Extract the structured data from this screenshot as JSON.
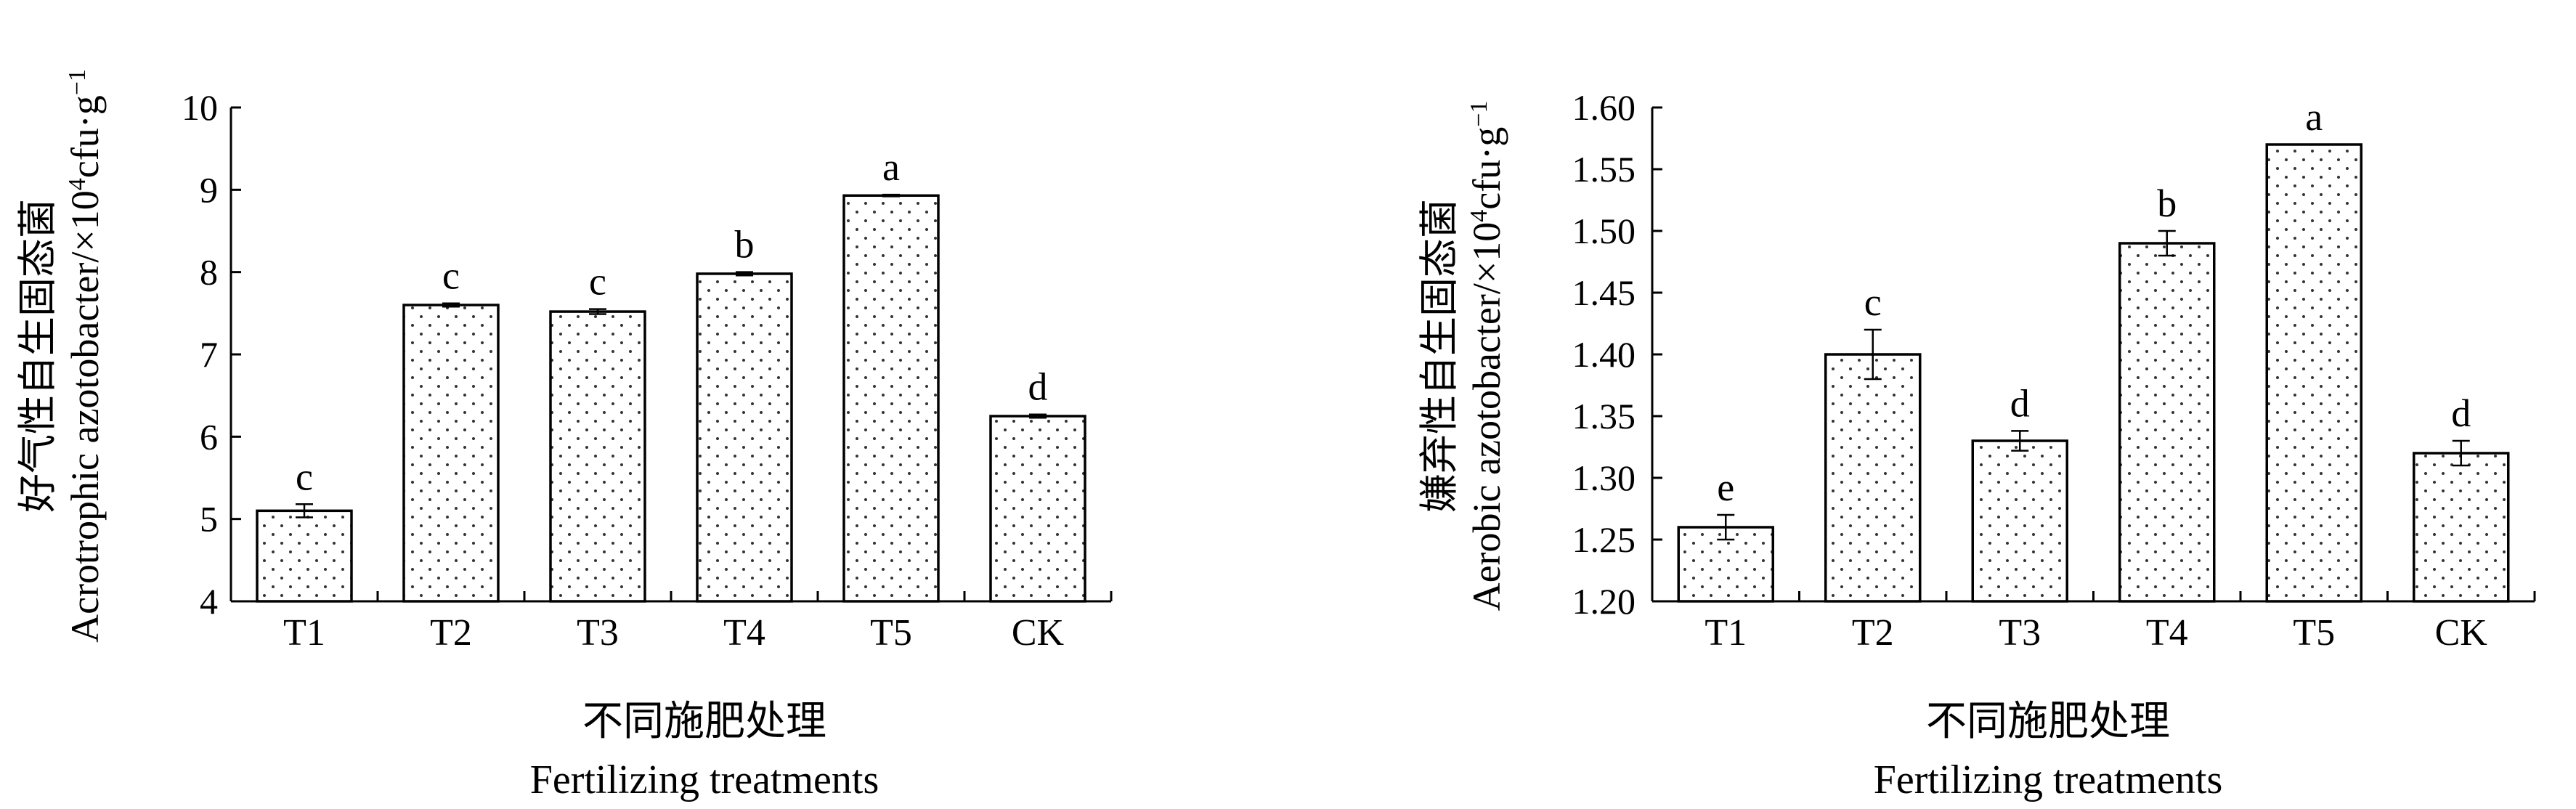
{
  "chart_data": [
    {
      "type": "bar",
      "categories": [
        "T1",
        "T2",
        "T3",
        "T4",
        "T5",
        "CK"
      ],
      "values": [
        5.1,
        7.6,
        7.52,
        7.98,
        8.93,
        6.25
      ],
      "errors": [
        0.08,
        0.02,
        0.03,
        0.02,
        0.01,
        0.02
      ],
      "significance": [
        "c",
        "c",
        "c",
        "b",
        "a",
        "d"
      ],
      "ylim": [
        4,
        10
      ],
      "yticks": [
        "4",
        "5",
        "6",
        "7",
        "8",
        "9",
        "10"
      ],
      "ylabel_cn": "好气性自生固态菌",
      "ylabel_en": "Acrotrophic azotobacter/×10",
      "ylabel_sup": "4",
      "ylabel_unit": "cfu·g",
      "ylabel_unit_sup": "−1",
      "xlabel_cn": "不同施肥处理",
      "xlabel_en": "Fertilizing treatments",
      "fill": "dotted pattern"
    },
    {
      "type": "bar",
      "categories": [
        "T1",
        "T2",
        "T3",
        "T4",
        "T5",
        "CK"
      ],
      "values": [
        1.26,
        1.4,
        1.33,
        1.49,
        1.57,
        1.32
      ],
      "errors": [
        0.01,
        0.02,
        0.008,
        0.01,
        0.0,
        0.01
      ],
      "significance": [
        "e",
        "c",
        "d",
        "b",
        "a",
        "d"
      ],
      "ylim": [
        1.2,
        1.6
      ],
      "yticks": [
        "1.20",
        "1.25",
        "1.30",
        "1.35",
        "1.40",
        "1.45",
        "1.50",
        "1.55",
        "1.60"
      ],
      "ylabel_cn": "嫌弃性自生固态菌",
      "ylabel_en": "Aerobic azotobacter/×10",
      "ylabel_sup": "4",
      "ylabel_unit": "cfu·g",
      "ylabel_unit_sup": "−1",
      "xlabel_cn": "不同施肥处理",
      "xlabel_en": "Fertilizing treatments",
      "fill": "dotted pattern"
    }
  ]
}
